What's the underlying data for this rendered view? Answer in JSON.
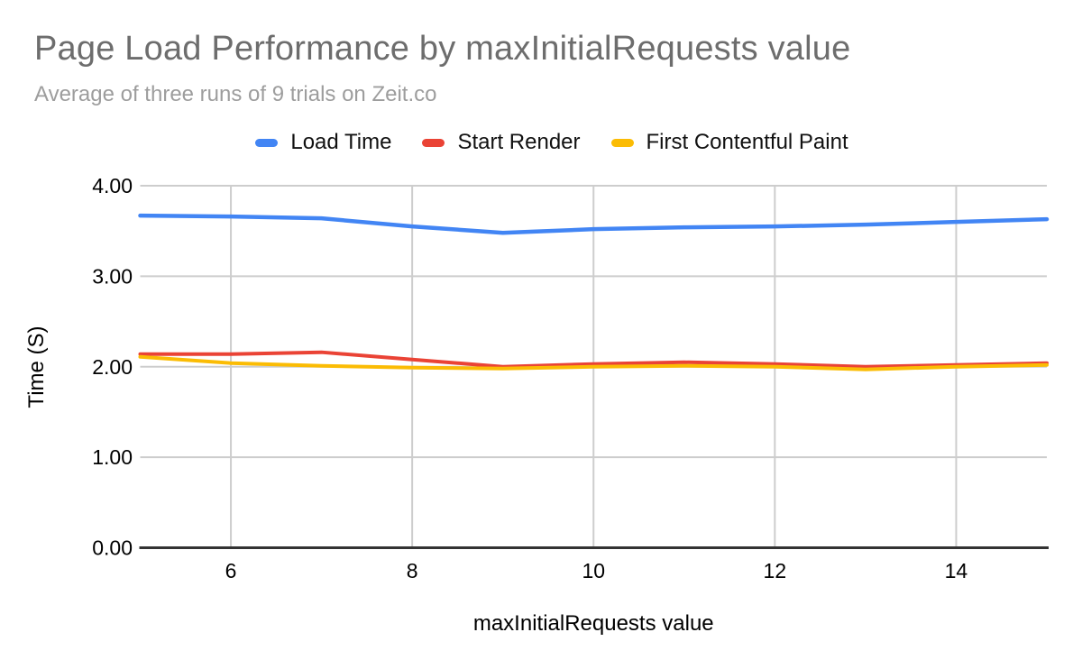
{
  "header": {
    "title": "Page Load Performance by maxInitialRequests value",
    "subtitle": "Average of three runs of 9 trials on Zeit.co"
  },
  "legend": [
    {
      "label": "Load Time",
      "color": "#4285f4"
    },
    {
      "label": "Start Render",
      "color": "#ea4335"
    },
    {
      "label": "First Contentful Paint",
      "color": "#fbbc04"
    }
  ],
  "colors": {
    "title_gray": "#6d6d6d",
    "subtitle_gray": "#9d9d9d",
    "gridline": "#cdcdcd",
    "axis_line": "#333333",
    "tick_text": "#000000"
  },
  "chart_data": {
    "type": "line",
    "title": "Page Load Performance by maxInitialRequests value",
    "subtitle": "Average of three runs of 9 trials on Zeit.co",
    "xlabel": "maxInitialRequests value",
    "ylabel": "Time (S)",
    "xlim": [
      5,
      15
    ],
    "ylim": [
      0,
      4
    ],
    "xticks": [
      6,
      8,
      10,
      12,
      14
    ],
    "xtick_labels": [
      "6",
      "8",
      "10",
      "12",
      "14"
    ],
    "yticks": [
      0,
      1,
      2,
      3,
      4
    ],
    "ytick_labels": [
      "0.00",
      "1.00",
      "2.00",
      "3.00",
      "4.00"
    ],
    "grid": true,
    "legend_position": "top",
    "x": [
      5,
      6,
      7,
      8,
      9,
      10,
      11,
      12,
      13,
      14,
      15
    ],
    "series": [
      {
        "name": "Load Time",
        "color": "#4285f4",
        "stroke_width": 4.5,
        "values": [
          3.67,
          3.66,
          3.64,
          3.55,
          3.48,
          3.52,
          3.54,
          3.55,
          3.57,
          3.6,
          3.63
        ]
      },
      {
        "name": "Start Render",
        "color": "#ea4335",
        "stroke_width": 4,
        "values": [
          2.14,
          2.14,
          2.16,
          2.08,
          2.0,
          2.03,
          2.05,
          2.03,
          2.0,
          2.02,
          2.04
        ]
      },
      {
        "name": "First Contentful Paint",
        "color": "#fbbc04",
        "stroke_width": 4,
        "values": [
          2.11,
          2.04,
          2.01,
          1.99,
          1.98,
          2.0,
          2.01,
          2.0,
          1.97,
          2.0,
          2.02
        ]
      }
    ]
  }
}
